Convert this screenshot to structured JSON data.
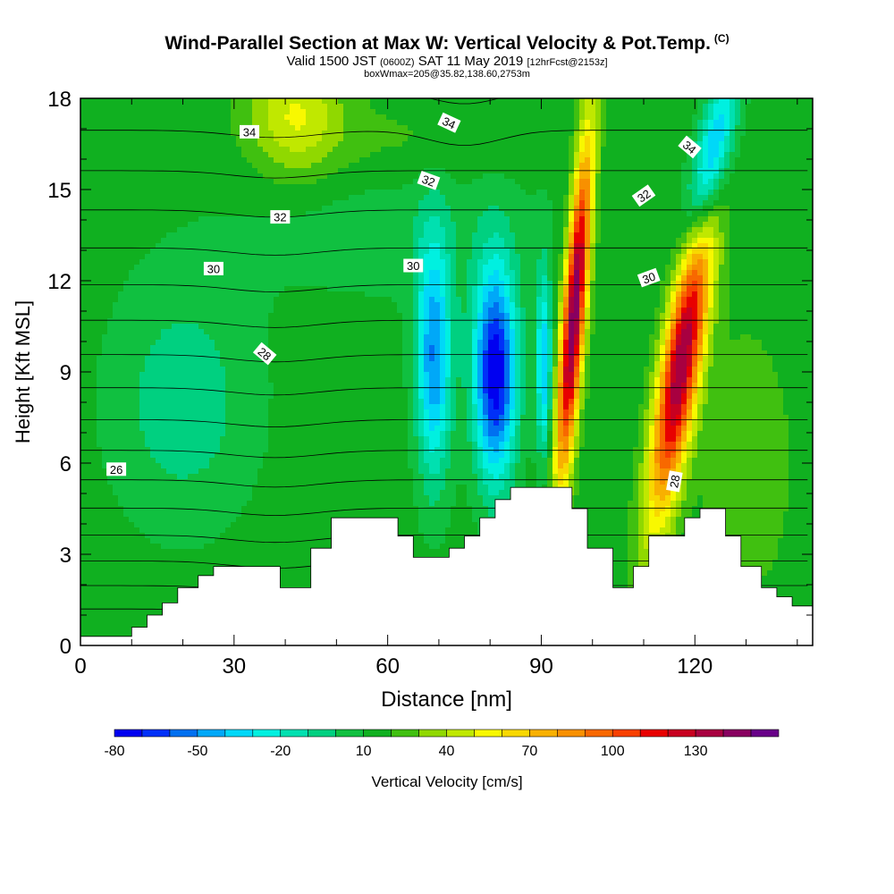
{
  "title": {
    "main": "Wind-Parallel Section at Max W: Vertical Velocity & Pot.Temp.",
    "copyright": "(C)",
    "valid_prefix": "Valid 1500 JST",
    "valid_z": "(0600Z)",
    "valid_date": "SAT 11 May 2019",
    "forecast": "[12hrFcst@2153z]",
    "box_info": "boxWmax=205@35.82,138.60,2753m"
  },
  "chart_data": {
    "type": "heatmap",
    "xlabel": "Distance [nm]",
    "ylabel": "Height [Kft MSL]",
    "xlim": [
      0,
      143
    ],
    "ylim": [
      0,
      18
    ],
    "x_ticks": [
      "0",
      "30",
      "60",
      "90",
      "120"
    ],
    "y_ticks": [
      "0",
      "3",
      "6",
      "9",
      "12",
      "15",
      "18"
    ],
    "colorbar": {
      "label": "Vertical Velocity [cm/s]",
      "tick_labels": [
        "-80",
        "-50",
        "-20",
        "10",
        "40",
        "70",
        "100",
        "130"
      ],
      "levels": [
        -80,
        -70,
        -60,
        -50,
        -40,
        -30,
        -20,
        -10,
        0,
        10,
        20,
        30,
        40,
        50,
        60,
        70,
        80,
        90,
        100,
        110,
        120,
        130,
        140,
        150
      ],
      "colors": [
        "#0000f0",
        "#0030f8",
        "#0070f0",
        "#00a8f8",
        "#00d8f8",
        "#00f0e0",
        "#00e0b0",
        "#00d080",
        "#10c040",
        "#10b020",
        "#40c010",
        "#90d800",
        "#c0e800",
        "#f8f800",
        "#f8d800",
        "#f8b000",
        "#f89000",
        "#f86800",
        "#f84000",
        "#e80000",
        "#c80020",
        "#a80040",
        "#880060",
        "#680088"
      ]
    },
    "contour_labels": [
      "26",
      "28",
      "28",
      "30",
      "30",
      "30",
      "32",
      "32",
      "32",
      "34",
      "34",
      "34"
    ],
    "terrain_kft": [
      [
        0,
        0.3
      ],
      [
        10,
        0.3
      ],
      [
        10,
        0.6
      ],
      [
        13,
        0.6
      ],
      [
        13,
        1
      ],
      [
        16,
        1
      ],
      [
        16,
        1.4
      ],
      [
        19,
        1.4
      ],
      [
        19,
        1.9
      ],
      [
        23,
        1.9
      ],
      [
        23,
        2.3
      ],
      [
        26,
        2.3
      ],
      [
        26,
        2.6
      ],
      [
        39,
        2.6
      ],
      [
        39,
        1.9
      ],
      [
        45,
        1.9
      ],
      [
        45,
        3.2
      ],
      [
        49,
        3.2
      ],
      [
        49,
        4.2
      ],
      [
        62,
        4.2
      ],
      [
        62,
        3.6
      ],
      [
        65,
        3.6
      ],
      [
        65,
        2.9
      ],
      [
        72,
        2.9
      ],
      [
        72,
        3.2
      ],
      [
        75,
        3.2
      ],
      [
        75,
        3.6
      ],
      [
        78,
        3.6
      ],
      [
        78,
        4.2
      ],
      [
        81,
        4.2
      ],
      [
        81,
        4.8
      ],
      [
        84,
        4.8
      ],
      [
        84,
        5.2
      ],
      [
        96,
        5.2
      ],
      [
        96,
        4.5
      ],
      [
        99,
        4.5
      ],
      [
        99,
        3.2
      ],
      [
        104,
        3.2
      ],
      [
        104,
        1.9
      ],
      [
        108,
        1.9
      ],
      [
        108,
        2.6
      ],
      [
        111,
        2.6
      ],
      [
        111,
        3.6
      ],
      [
        118,
        3.6
      ],
      [
        118,
        4.2
      ],
      [
        121,
        4.2
      ],
      [
        121,
        4.5
      ],
      [
        126,
        4.5
      ],
      [
        126,
        3.6
      ],
      [
        129,
        3.6
      ],
      [
        129,
        2.6
      ],
      [
        133,
        2.6
      ],
      [
        133,
        1.9
      ],
      [
        136,
        1.9
      ],
      [
        136,
        1.6
      ],
      [
        139,
        1.6
      ],
      [
        139,
        1.3
      ],
      [
        143,
        1.3
      ]
    ],
    "wind_field_features": [
      {
        "type": "updraft",
        "x": 97,
        "y": 11.3,
        "peak": 130
      },
      {
        "type": "updraft",
        "x": 117,
        "y": 9.3,
        "peak": 120
      },
      {
        "type": "downdraft",
        "x": 81,
        "y": 9,
        "peak": -80
      },
      {
        "type": "downdraft",
        "x": 69,
        "y": 9.5,
        "peak": -50
      },
      {
        "type": "downdraft",
        "x": 123,
        "y": 16.5,
        "peak": -50
      },
      {
        "type": "updraft",
        "x": 42,
        "y": 17.5,
        "peak": 45
      }
    ]
  }
}
